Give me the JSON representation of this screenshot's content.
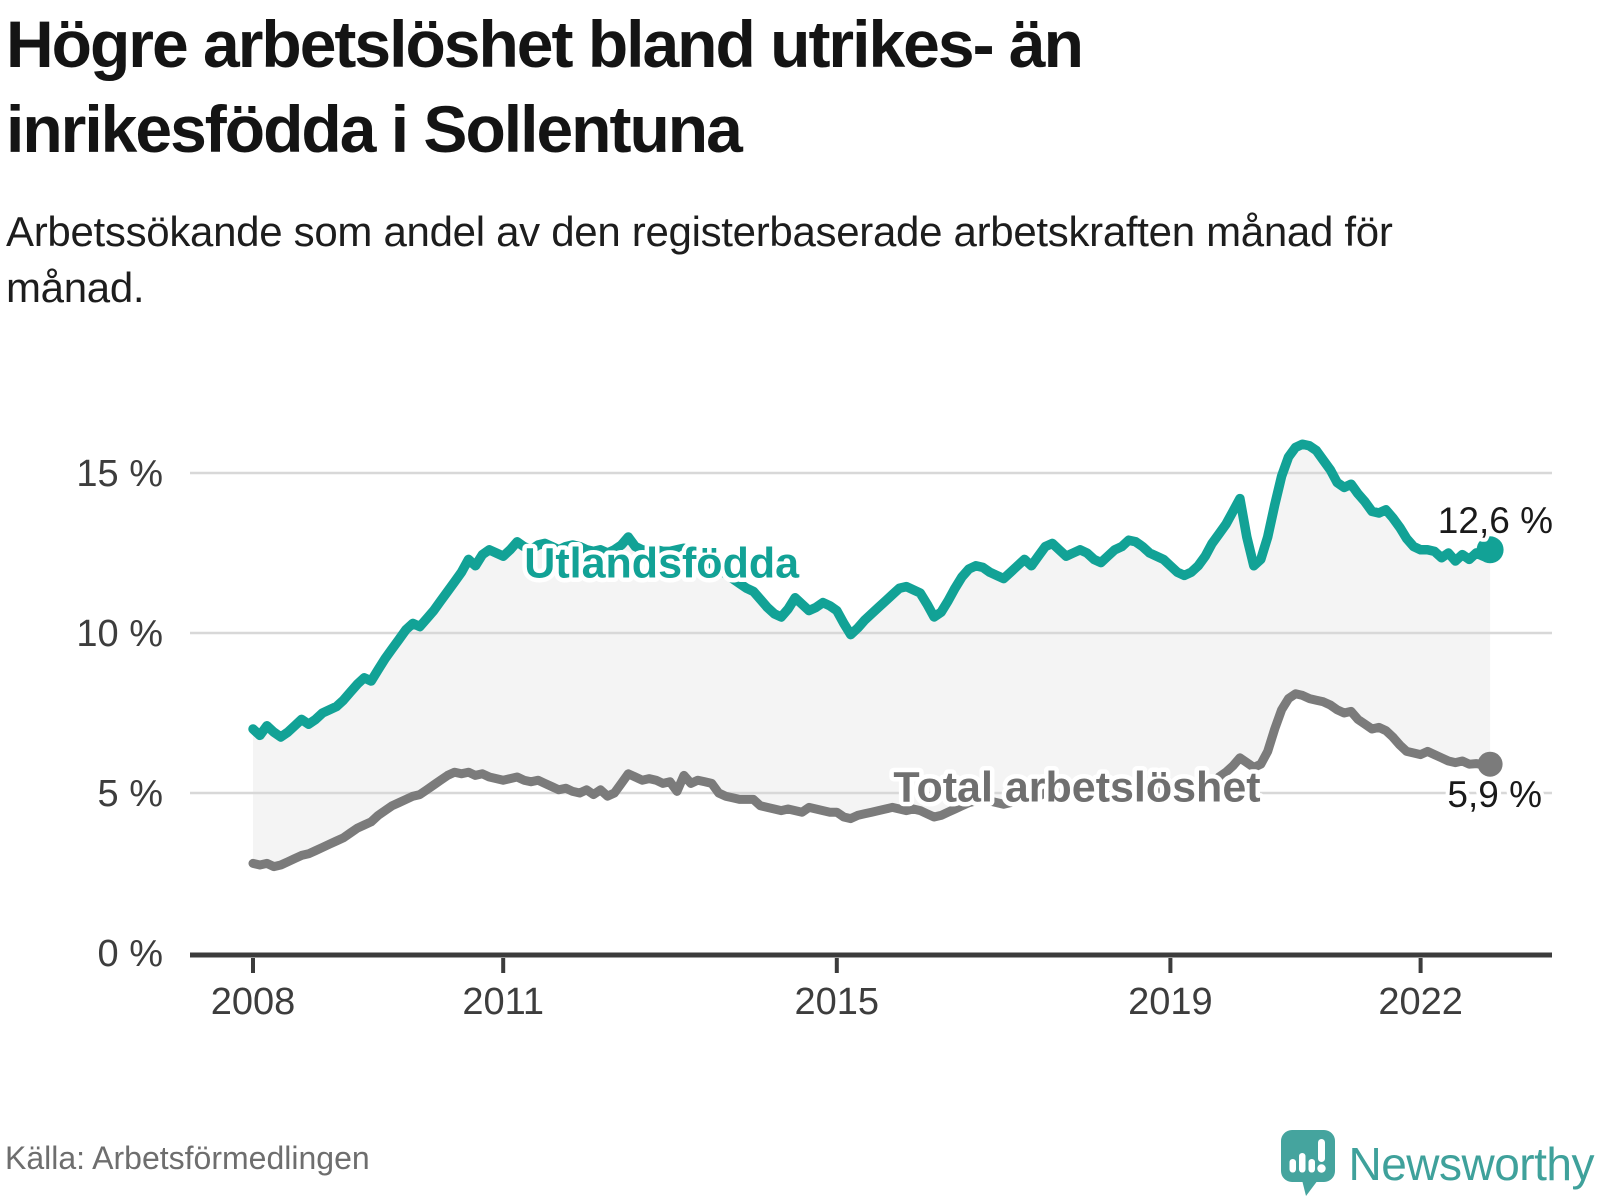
{
  "footer": {
    "source": "Källa: Arbetsförmedlingen",
    "brand": "Newsworthy"
  },
  "colors": {
    "series_foreign_born": "#12a296",
    "series_total": "#7b7b7b",
    "band": "#f4f4f4",
    "grid": "#d8d8d8",
    "axis": "#3c3c3c",
    "value_label": "#1a1a1a",
    "brand_teal": "#3fa19b"
  },
  "chart_data": {
    "type": "line",
    "title": "Högre arbetslöshet bland utrikes- än inrikesfödda i Sollentuna",
    "subtitle": "Arbetssökande som andel av den registerbaserade arbetskraften månad för månad.",
    "x_start_year": 2008,
    "x_step_months": 1,
    "x_tick_years": [
      2008,
      2011,
      2015,
      2019,
      2022
    ],
    "y_ticks": [
      {
        "value": 0,
        "label": "0 %"
      },
      {
        "value": 5,
        "label": "5 %"
      },
      {
        "value": 10,
        "label": "10 %"
      },
      {
        "value": 15,
        "label": "15 %"
      }
    ],
    "ylim": [
      0,
      17.3
    ],
    "grid": true,
    "band_color": "#f4f4f4",
    "series": [
      {
        "name": "Utlandsfödda",
        "color": "#12a296",
        "end_label": "12,6 %",
        "end_value": 12.6,
        "values": [
          7.0,
          6.8,
          7.1,
          6.9,
          6.75,
          6.9,
          7.1,
          7.3,
          7.15,
          7.3,
          7.5,
          7.6,
          7.7,
          7.9,
          8.15,
          8.4,
          8.6,
          8.5,
          8.85,
          9.2,
          9.5,
          9.8,
          10.1,
          10.3,
          10.2,
          10.45,
          10.7,
          11.0,
          11.3,
          11.6,
          11.9,
          12.3,
          12.1,
          12.45,
          12.6,
          12.5,
          12.4,
          12.6,
          12.85,
          12.7,
          12.6,
          12.75,
          12.8,
          12.7,
          12.6,
          12.7,
          12.75,
          12.7,
          12.6,
          12.55,
          12.6,
          12.5,
          12.6,
          12.75,
          13.0,
          12.7,
          12.6,
          12.55,
          12.6,
          12.55,
          12.55,
          12.6,
          12.65,
          12.5,
          12.4,
          12.3,
          12.15,
          12.0,
          11.85,
          11.7,
          11.55,
          11.4,
          11.3,
          11.05,
          10.8,
          10.6,
          10.5,
          10.75,
          11.1,
          10.9,
          10.7,
          10.8,
          10.95,
          10.85,
          10.7,
          10.3,
          9.95,
          10.15,
          10.4,
          10.6,
          10.8,
          11.0,
          11.2,
          11.4,
          11.45,
          11.35,
          11.25,
          10.9,
          10.5,
          10.65,
          11.0,
          11.4,
          11.75,
          12.0,
          12.1,
          12.05,
          11.9,
          11.8,
          11.7,
          11.9,
          12.1,
          12.3,
          12.1,
          12.4,
          12.7,
          12.8,
          12.6,
          12.4,
          12.5,
          12.6,
          12.5,
          12.3,
          12.2,
          12.4,
          12.6,
          12.7,
          12.9,
          12.85,
          12.7,
          12.5,
          12.4,
          12.3,
          12.1,
          11.9,
          11.8,
          11.9,
          12.1,
          12.4,
          12.8,
          13.1,
          13.4,
          13.8,
          14.2,
          13.0,
          12.1,
          12.3,
          13.0,
          14.0,
          14.9,
          15.5,
          15.8,
          15.9,
          15.85,
          15.7,
          15.4,
          15.1,
          14.7,
          14.55,
          14.65,
          14.35,
          14.1,
          13.8,
          13.75,
          13.85,
          13.6,
          13.3,
          12.95,
          12.7,
          12.6,
          12.6,
          12.55,
          12.35,
          12.5,
          12.25,
          12.45,
          12.3,
          12.5,
          12.4,
          12.6
        ]
      },
      {
        "name": "Total arbetslöshet",
        "color": "#7b7b7b",
        "end_label": "5,9 %",
        "end_value": 5.9,
        "values": [
          2.8,
          2.75,
          2.8,
          2.7,
          2.75,
          2.85,
          2.95,
          3.05,
          3.1,
          3.2,
          3.3,
          3.4,
          3.5,
          3.6,
          3.75,
          3.9,
          4.0,
          4.1,
          4.3,
          4.45,
          4.6,
          4.7,
          4.8,
          4.9,
          4.95,
          5.1,
          5.25,
          5.4,
          5.55,
          5.65,
          5.6,
          5.65,
          5.55,
          5.6,
          5.5,
          5.45,
          5.4,
          5.45,
          5.5,
          5.4,
          5.35,
          5.4,
          5.3,
          5.2,
          5.1,
          5.15,
          5.05,
          5.0,
          5.1,
          4.95,
          5.1,
          4.9,
          5.0,
          5.3,
          5.6,
          5.5,
          5.4,
          5.45,
          5.4,
          5.3,
          5.35,
          5.05,
          5.55,
          5.3,
          5.4,
          5.35,
          5.3,
          5.0,
          4.9,
          4.85,
          4.8,
          4.8,
          4.8,
          4.6,
          4.55,
          4.5,
          4.45,
          4.5,
          4.45,
          4.4,
          4.55,
          4.5,
          4.45,
          4.4,
          4.4,
          4.25,
          4.2,
          4.3,
          4.35,
          4.4,
          4.45,
          4.5,
          4.55,
          4.5,
          4.45,
          4.5,
          4.45,
          4.35,
          4.25,
          4.3,
          4.4,
          4.5,
          4.6,
          4.7,
          4.75,
          4.8,
          4.75,
          4.7,
          4.65,
          4.7,
          4.8,
          4.85,
          4.8,
          4.9,
          5.0,
          5.1,
          5.05,
          4.95,
          5.0,
          5.05,
          5.0,
          4.95,
          4.9,
          5.0,
          5.05,
          5.1,
          5.2,
          5.25,
          5.15,
          5.1,
          5.05,
          5.0,
          4.95,
          4.9,
          4.85,
          4.9,
          5.0,
          5.15,
          5.3,
          5.5,
          5.65,
          5.85,
          6.1,
          5.95,
          5.8,
          5.9,
          6.3,
          7.0,
          7.6,
          7.95,
          8.1,
          8.05,
          7.95,
          7.9,
          7.85,
          7.75,
          7.6,
          7.5,
          7.55,
          7.3,
          7.15,
          7.0,
          7.05,
          6.95,
          6.75,
          6.5,
          6.3,
          6.25,
          6.2,
          6.3,
          6.2,
          6.1,
          6.0,
          5.95,
          6.0,
          5.9,
          5.92,
          5.88,
          5.9
        ]
      }
    ],
    "annotations": [
      {
        "text": "Utlandsfödda",
        "year": 2012.9,
        "value": 12.2,
        "color": "#12a296"
      },
      {
        "text": "Total arbetslöshet",
        "year": 2017.88,
        "value": 5.2,
        "color": "#6f6f6f"
      }
    ]
  }
}
